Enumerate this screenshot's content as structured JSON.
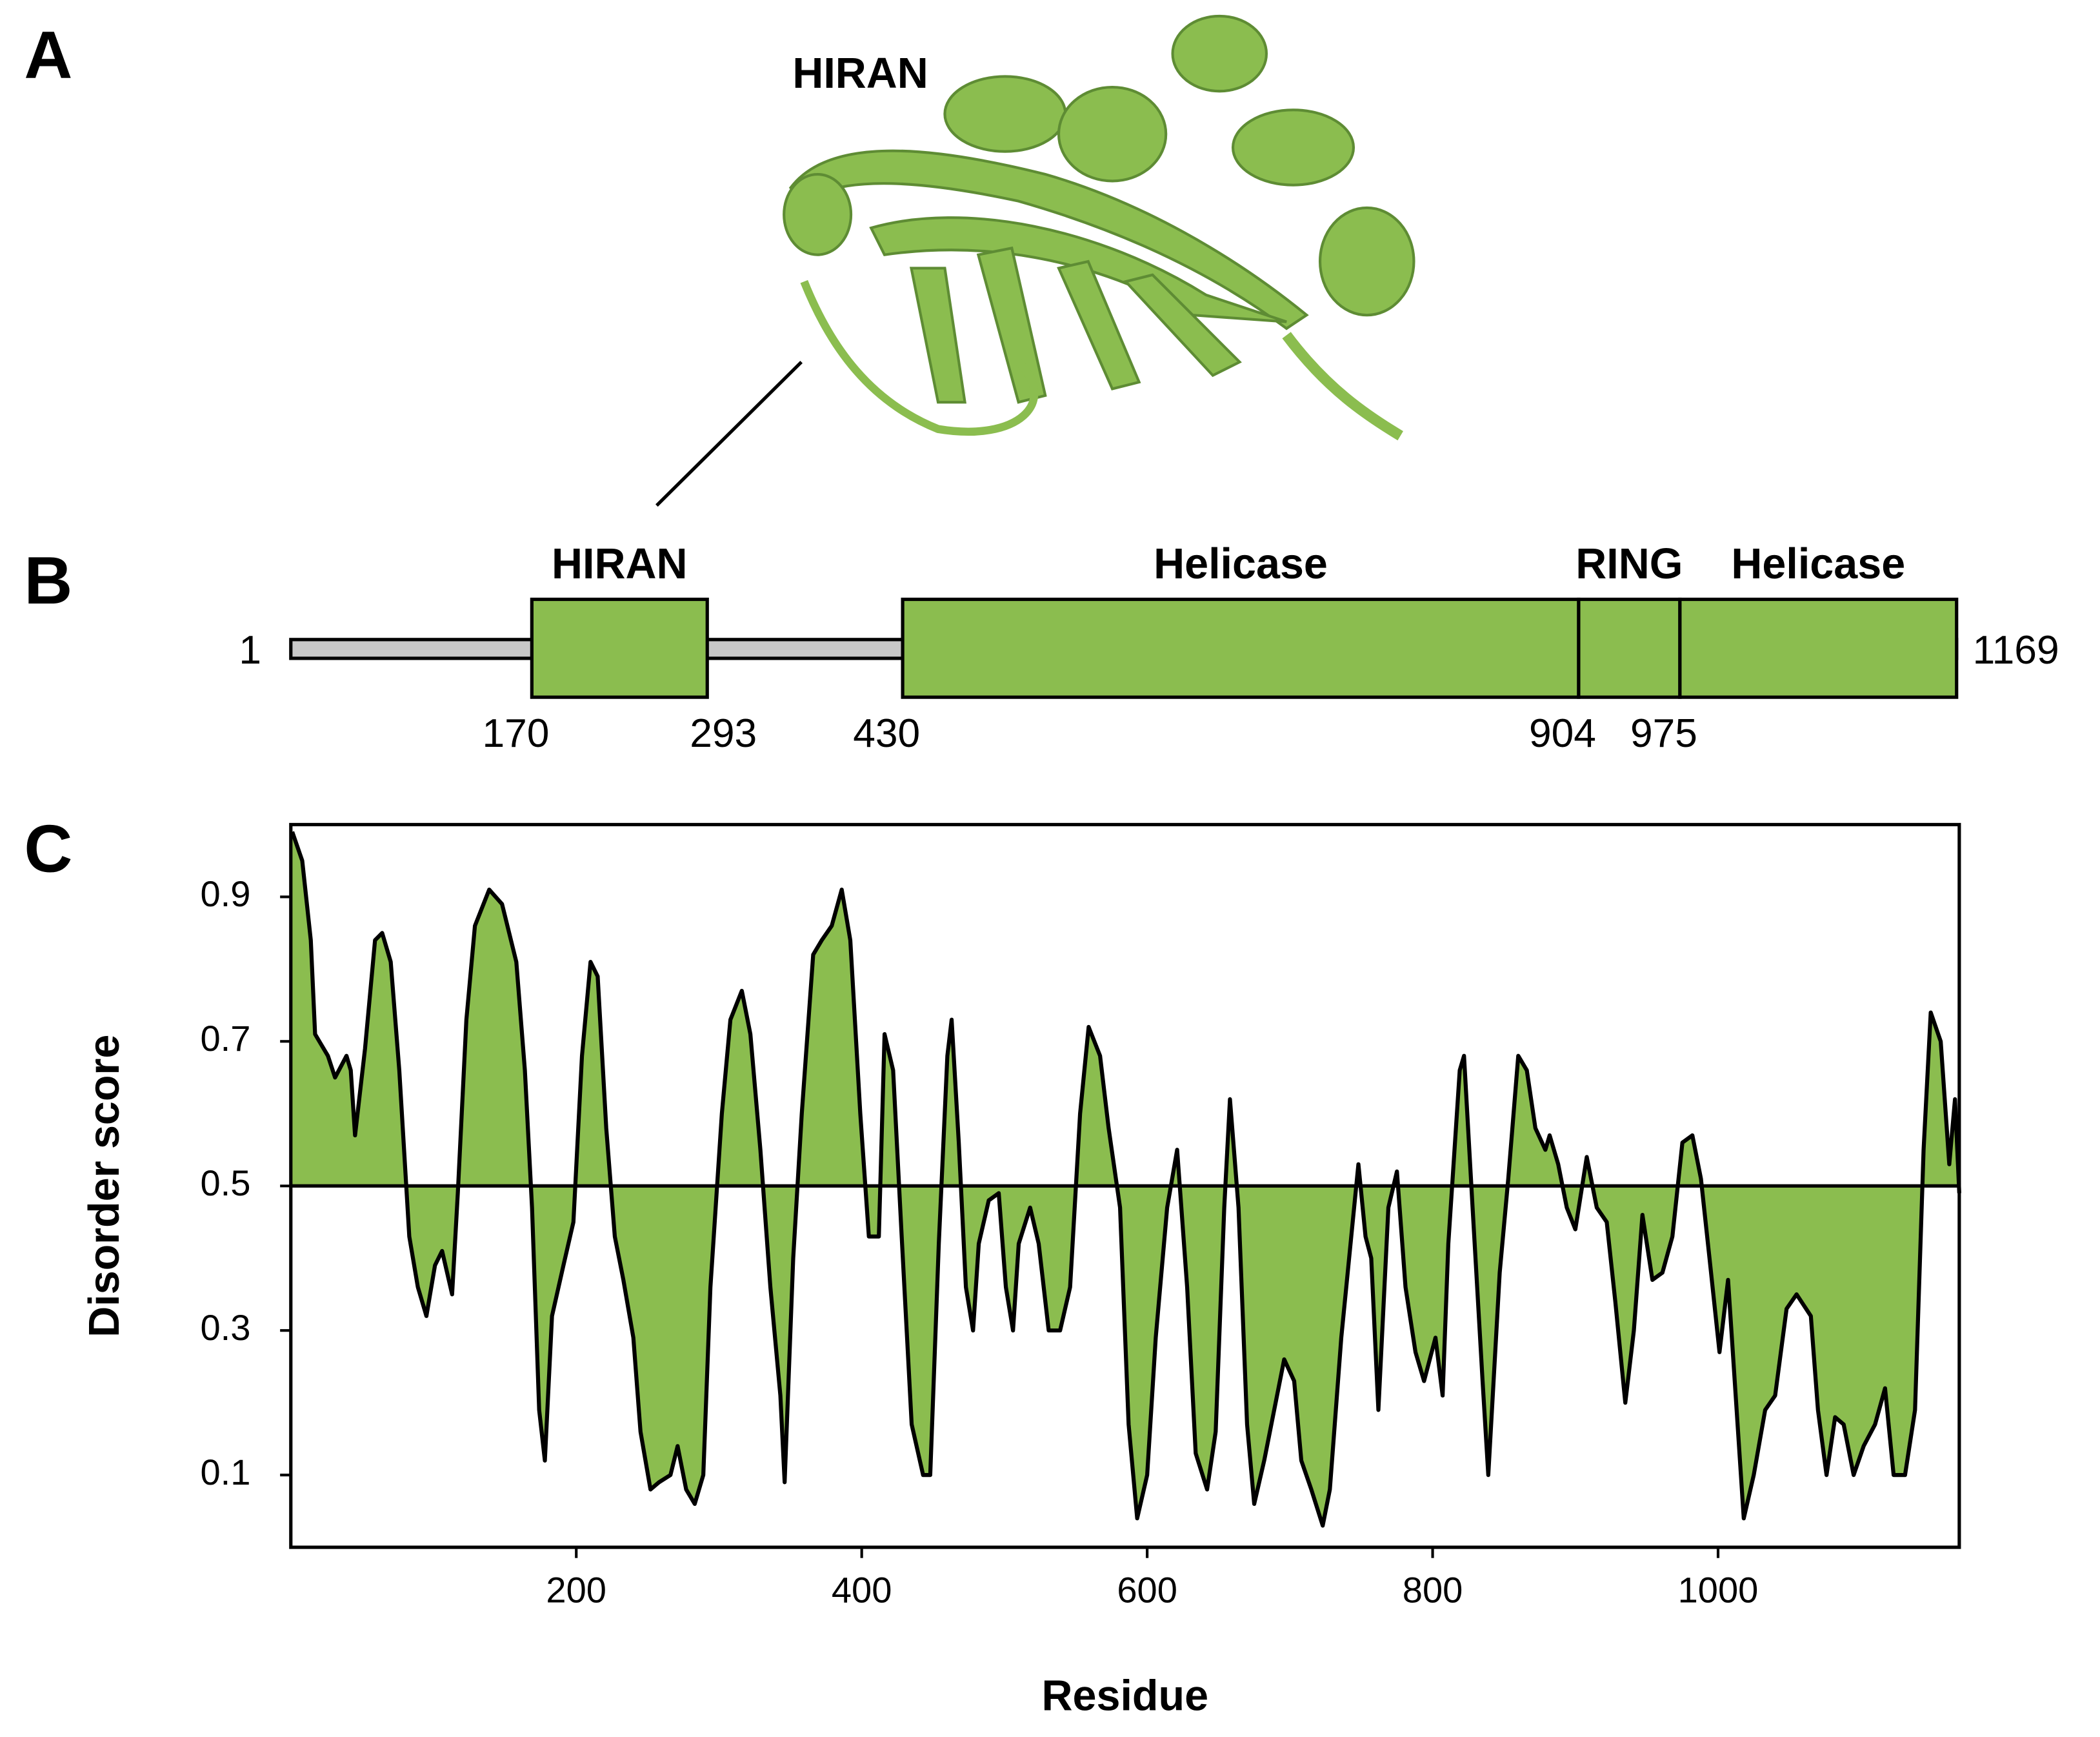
{
  "panel_labels": [
    "A",
    "B",
    "C"
  ],
  "structure": {
    "label": "HIRAN"
  },
  "domain_map": {
    "length_start": 1,
    "length_end": 1169,
    "domains": [
      {
        "name": "HIRAN",
        "start": 170,
        "end": 293
      },
      {
        "name": "Helicase",
        "start": 430
      },
      {
        "name": "RING",
        "start": 904
      },
      {
        "name": "Helicase",
        "start": 975
      }
    ],
    "color": "#8bbd4f",
    "linker_color": "#c8c8c8"
  },
  "chart_data": {
    "type": "area",
    "x_label": "Residue",
    "y_label": "Disorder score",
    "x": [
      1,
      8,
      14,
      17,
      26,
      31,
      39,
      42,
      45,
      52,
      59,
      64,
      70,
      76,
      83,
      89,
      95,
      101,
      106,
      113,
      117,
      123,
      129,
      139,
      148,
      158,
      164,
      169,
      174,
      178,
      183,
      191,
      198,
      204,
      210,
      215,
      221,
      227,
      233,
      240,
      245,
      252,
      258,
      266,
      271,
      277,
      283,
      289,
      294,
      302,
      308,
      316,
      322,
      329,
      336,
      343,
      346,
      352,
      358,
      366,
      372,
      379,
      386,
      392,
      399,
      405,
      412,
      416,
      422,
      428,
      435,
      443,
      448,
      454,
      460,
      463,
      468,
      473,
      478,
      482,
      489,
      496,
      501,
      506,
      510,
      518,
      524,
      531,
      539,
      546,
      553,
      559,
      567,
      573,
      581,
      587,
      593,
      600,
      606,
      614,
      621,
      628,
      634,
      642,
      648,
      654,
      658,
      664,
      670,
      675,
      682,
      689,
      696,
      703,
      708,
      715,
      723,
      728,
      736,
      743,
      748,
      753,
      757,
      762,
      769,
      775,
      781,
      788,
      794,
      802,
      807,
      811,
      819,
      822,
      828,
      835,
      839,
      847,
      853,
      860,
      866,
      872,
      879,
      882,
      888,
      894,
      900,
      908,
      915,
      922,
      928,
      935,
      941,
      947,
      954,
      961,
      968,
      975,
      982,
      988,
      994,
      1001,
      1007,
      1013,
      1018,
      1025,
      1033,
      1040,
      1048,
      1055,
      1065,
      1070,
      1076,
      1082,
      1088,
      1095,
      1102,
      1110,
      1117,
      1123,
      1131,
      1138,
      1144,
      1149,
      1156,
      1162,
      1166,
      1169
    ],
    "values": [
      0.99,
      0.95,
      0.84,
      0.71,
      0.68,
      0.65,
      0.68,
      0.66,
      0.57,
      0.69,
      0.84,
      0.85,
      0.81,
      0.66,
      0.43,
      0.36,
      0.32,
      0.39,
      0.41,
      0.35,
      0.49,
      0.73,
      0.86,
      0.91,
      0.89,
      0.81,
      0.66,
      0.47,
      0.19,
      0.12,
      0.32,
      0.39,
      0.45,
      0.68,
      0.81,
      0.79,
      0.58,
      0.43,
      0.37,
      0.29,
      0.16,
      0.08,
      0.09,
      0.1,
      0.14,
      0.08,
      0.06,
      0.1,
      0.36,
      0.6,
      0.73,
      0.77,
      0.71,
      0.55,
      0.36,
      0.21,
      0.09,
      0.4,
      0.6,
      0.82,
      0.84,
      0.86,
      0.91,
      0.84,
      0.6,
      0.43,
      0.43,
      0.71,
      0.66,
      0.43,
      0.17,
      0.1,
      0.1,
      0.42,
      0.68,
      0.73,
      0.56,
      0.36,
      0.3,
      0.42,
      0.48,
      0.49,
      0.36,
      0.3,
      0.42,
      0.47,
      0.42,
      0.3,
      0.3,
      0.36,
      0.6,
      0.72,
      0.68,
      0.58,
      0.47,
      0.17,
      0.04,
      0.1,
      0.29,
      0.47,
      0.55,
      0.36,
      0.13,
      0.08,
      0.16,
      0.47,
      0.62,
      0.47,
      0.17,
      0.06,
      0.12,
      0.19,
      0.26,
      0.23,
      0.12,
      0.08,
      0.03,
      0.08,
      0.29,
      0.43,
      0.53,
      0.43,
      0.4,
      0.19,
      0.47,
      0.52,
      0.36,
      0.27,
      0.23,
      0.29,
      0.21,
      0.42,
      0.66,
      0.68,
      0.47,
      0.23,
      0.1,
      0.38,
      0.51,
      0.68,
      0.66,
      0.58,
      0.55,
      0.57,
      0.53,
      0.47,
      0.44,
      0.54,
      0.47,
      0.45,
      0.34,
      0.2,
      0.3,
      0.46,
      0.37,
      0.38,
      0.43,
      0.56,
      0.57,
      0.51,
      0.4,
      0.27,
      0.37,
      0.19,
      0.04,
      0.1,
      0.19,
      0.21,
      0.33,
      0.35,
      0.32,
      0.19,
      0.1,
      0.18,
      0.17,
      0.1,
      0.14,
      0.17,
      0.22,
      0.1,
      0.1,
      0.19,
      0.55,
      0.74,
      0.7,
      0.53,
      0.62,
      0.49
    ],
    "threshold": 0.5,
    "color": "#8bbd4f",
    "xlim": [
      0,
      1169
    ],
    "xticks": [
      200,
      400,
      600,
      800,
      1000
    ],
    "ylim": [
      0,
      1
    ],
    "yticks": [
      0.1,
      0.3,
      0.5,
      0.7,
      0.9
    ]
  }
}
